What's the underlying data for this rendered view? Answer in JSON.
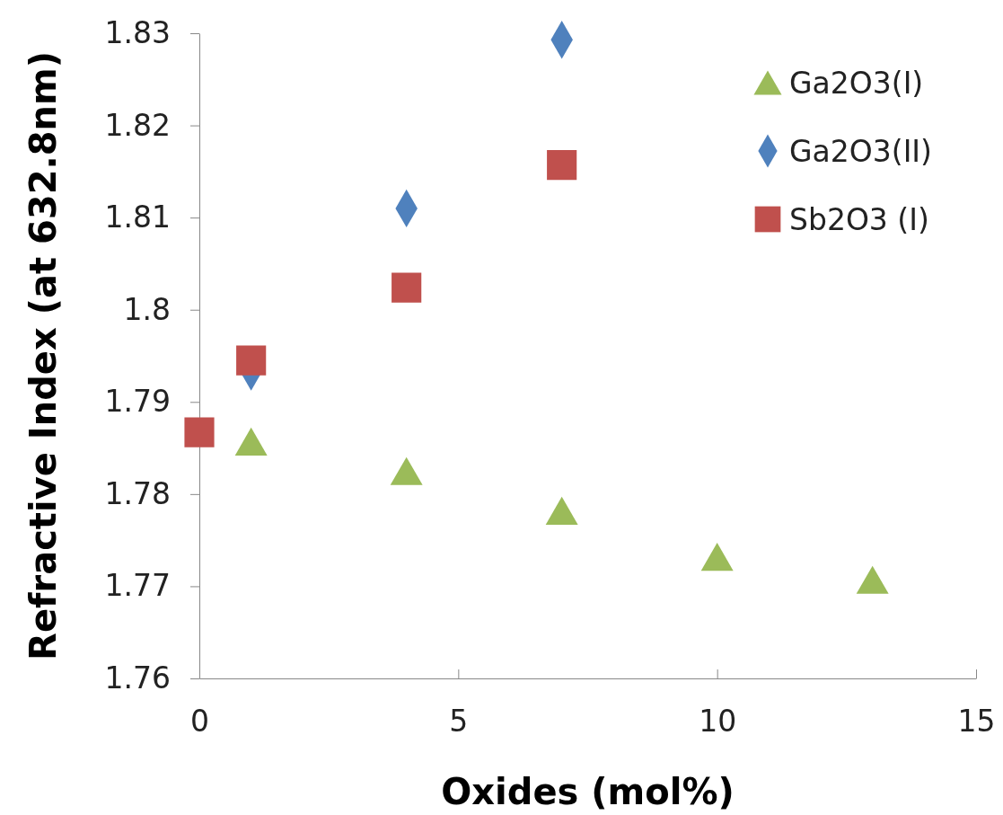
{
  "chart_data": {
    "type": "scatter",
    "xlabel": "Oxides (mol%)",
    "ylabel": "Refractive Index (at 632.8nm)",
    "xlim": [
      0,
      15
    ],
    "xticks": [
      0,
      5,
      10,
      15
    ],
    "ylim": [
      1.76,
      1.83
    ],
    "yticks": [
      {
        "value": 1.76,
        "label": "1.76"
      },
      {
        "value": 1.77,
        "label": "1.77"
      },
      {
        "value": 1.78,
        "label": "1.78"
      },
      {
        "value": 1.79,
        "label": "1.79"
      },
      {
        "value": 1.8,
        "label": "1.8"
      },
      {
        "value": 1.81,
        "label": "1.81"
      },
      {
        "value": 1.82,
        "label": "1.82"
      },
      {
        "value": 1.83,
        "label": "1.83"
      }
    ],
    "grid": false,
    "legend": "top right",
    "series": [
      {
        "name": "Ga2O3(I)",
        "color": "#9bbb59",
        "marker": "triangle",
        "x": [
          1,
          4,
          7,
          10,
          13
        ],
        "values": [
          1.7857,
          1.7825,
          1.7782,
          1.7732,
          1.7707
        ]
      },
      {
        "name": "Ga2O3(II)",
        "color": "#4f81bd",
        "marker": "diamond",
        "x": [
          1,
          4,
          7
        ],
        "values": [
          1.7933,
          1.811,
          1.8293
        ]
      },
      {
        "name": "Sb2O3 (I)",
        "color": "#c0504d",
        "marker": "square",
        "x": [
          0,
          1,
          4,
          7
        ],
        "values": [
          1.7867,
          1.7945,
          1.8024,
          1.8157
        ]
      }
    ]
  }
}
